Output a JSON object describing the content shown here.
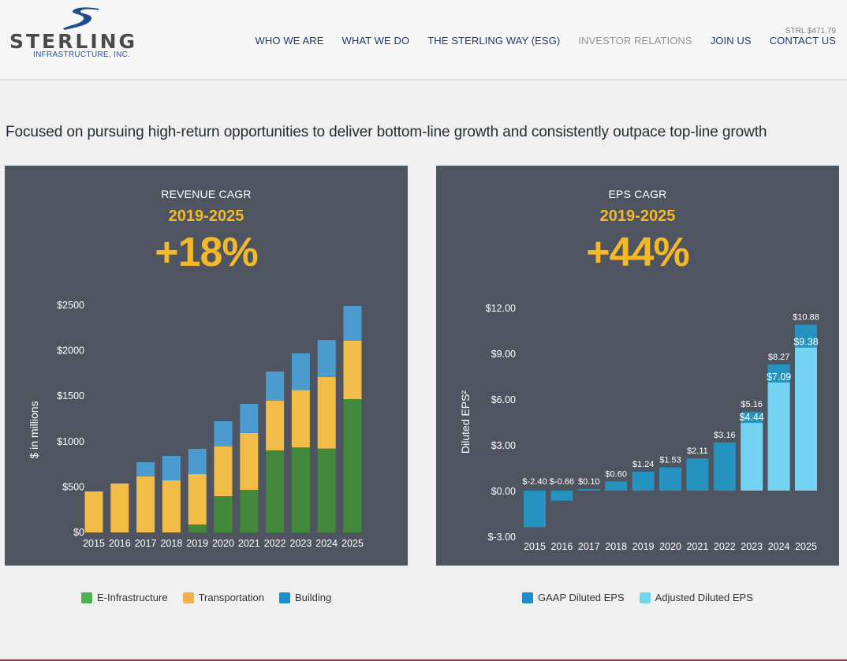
{
  "header": {
    "logo": {
      "name": "STERLING",
      "subtitle": "INFRASTRUCTURE, INC.",
      "icon": "swoosh-logo-icon"
    },
    "ticker": "STRL $471.79",
    "nav": [
      {
        "label": "WHO WE ARE",
        "active": false
      },
      {
        "label": "WHAT WE DO",
        "active": false
      },
      {
        "label": "THE STERLING WAY (ESG)",
        "active": false
      },
      {
        "label": "INVESTOR RELATIONS",
        "active": true
      },
      {
        "label": "JOIN US",
        "active": false
      },
      {
        "label": "CONTACT US",
        "active": false
      }
    ]
  },
  "tagline": "Focused on pursuing high-return opportunities to deliver bottom-line growth and consistently outpace top-line growth",
  "panels": {
    "revenue": {
      "title": "REVENUE CAGR",
      "range": "2019-2025",
      "value": "+18%"
    },
    "eps": {
      "title": "EPS CAGR",
      "range": "2019-2025",
      "value": "+44%"
    }
  },
  "colors": {
    "panel_bg": "#4f5560",
    "accent_yellow": "#f4b829",
    "e_infrastructure": "#43893c",
    "transportation": "#f2bc48",
    "building": "#4b9bcf",
    "gaap": "#2592bf",
    "adjusted": "#74d3f2",
    "legend_e_infrastructure": "#4caf50",
    "legend_transportation": "#f5b04a",
    "legend_building": "#1d8ec9",
    "legend_gaap": "#1d8ec9",
    "legend_adjusted": "#6fd6ee"
  },
  "chart_data": [
    {
      "type": "bar",
      "stacked": true,
      "title": "Revenue",
      "ylabel": "$ in millions",
      "xlabel": "",
      "ylim": [
        0,
        2500
      ],
      "yticks": [
        0,
        500,
        1000,
        1500,
        2000,
        2500
      ],
      "ytick_labels": [
        "$0",
        "$500",
        "$1000",
        "$1500",
        "$2000",
        "$2500"
      ],
      "grid": false,
      "legend_position": "bottom",
      "categories": [
        "2015",
        "2016",
        "2017",
        "2018",
        "2019",
        "2020",
        "2021",
        "2022",
        "2023",
        "2024",
        "2025"
      ],
      "series": [
        {
          "name": "E-Infrastructure",
          "values": [
            0,
            0,
            0,
            0,
            87,
            399,
            469,
            903,
            935,
            923,
            1467
          ]
        },
        {
          "name": "Transportation",
          "values": [
            451,
            538,
            616,
            573,
            555,
            547,
            625,
            547,
            631,
            787,
            643
          ]
        },
        {
          "name": "Building",
          "values": [
            0,
            0,
            157,
            269,
            278,
            278,
            321,
            321,
            405,
            407,
            382
          ]
        }
      ]
    },
    {
      "type": "bar",
      "stacked": false,
      "overlay": true,
      "title": "Diluted EPS",
      "ylabel": "Diluted EPS²",
      "xlabel": "",
      "ylim": [
        -3,
        12
      ],
      "yticks": [
        -3,
        0,
        3,
        6,
        9,
        12
      ],
      "ytick_labels": [
        "$-3.00",
        "$0.00",
        "$3.00",
        "$6.00",
        "$9.00",
        "$12.00"
      ],
      "grid": false,
      "legend_position": "bottom",
      "categories": [
        "2015",
        "2016",
        "2017",
        "2018",
        "2019",
        "2020",
        "2021",
        "2022",
        "2023",
        "2024",
        "2025"
      ],
      "series": [
        {
          "name": "GAAP Diluted EPS",
          "values": [
            -2.4,
            -0.66,
            0.1,
            0.6,
            1.24,
            1.53,
            2.11,
            3.16,
            4.44,
            7.09,
            9.38
          ],
          "labels": [
            "$-2.40",
            "$-0.66",
            "$0.10",
            "$0.60",
            "$1.24",
            "$1.53",
            "$2.11",
            "$3.16",
            "$4.44",
            "$7.09",
            "$9.38"
          ]
        },
        {
          "name": "Adjusted Diluted EPS",
          "values": [
            null,
            null,
            null,
            null,
            null,
            null,
            null,
            null,
            5.16,
            8.27,
            10.88
          ],
          "labels": [
            "",
            "",
            "",
            "",
            "",
            "",
            "",
            "",
            "$5.16",
            "$8.27",
            "$10.88"
          ]
        }
      ]
    }
  ],
  "legends": {
    "revenue": [
      {
        "label": "E-Infrastructure",
        "color_key": "legend_e_infrastructure"
      },
      {
        "label": "Transportation",
        "color_key": "legend_transportation"
      },
      {
        "label": "Building",
        "color_key": "legend_building"
      }
    ],
    "eps": [
      {
        "label": "GAAP Diluted EPS",
        "color_key": "legend_gaap"
      },
      {
        "label": "Adjusted Diluted EPS",
        "color_key": "legend_adjusted"
      }
    ]
  }
}
